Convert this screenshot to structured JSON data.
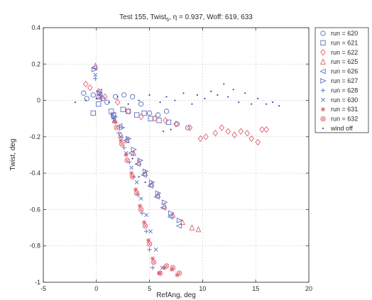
{
  "chart_data": {
    "type": "scatter",
    "title": "Test 155, Twist",
    "title_sub": "5",
    "title_rest": ", η = 0.937, Woff: 619, 633",
    "xlabel": "RefAng, deg",
    "ylabel": "Twist, deg",
    "xlim": [
      -5,
      20
    ],
    "ylim": [
      -1,
      0.4
    ],
    "xticks": [
      -5,
      0,
      5,
      10,
      15,
      20
    ],
    "yticks": [
      -1,
      -0.8,
      -0.6,
      -0.4,
      -0.2,
      0,
      0.2,
      0.4
    ],
    "xtick_labels": [
      "-5",
      "0",
      "5",
      "10",
      "15",
      "20"
    ],
    "ytick_labels": [
      "-1",
      "-0.8",
      "-0.6",
      "-0.4",
      "-0.2",
      "0",
      "0.2",
      "0.4"
    ],
    "grid": true,
    "legend_position": "top-right outside",
    "series": [
      {
        "name": "run = 620",
        "marker": "circle",
        "color": "#5b6fc0",
        "x": [
          -1.2,
          -0.9,
          -0.3,
          0.2,
          0.6,
          1.0,
          1.8,
          2.6,
          3.4,
          4.2,
          5.0,
          5.8,
          6.6,
          7.6,
          8.6
        ],
        "y": [
          0.04,
          0.01,
          0.03,
          0.02,
          0.01,
          -0.01,
          0.02,
          0.03,
          0.02,
          -0.02,
          -0.07,
          -0.08,
          -0.06,
          -0.13,
          -0.15
        ]
      },
      {
        "name": "run = 621",
        "marker": "square",
        "color": "#5b6fc0",
        "x": [
          -0.3,
          0.2,
          1.4,
          1.6,
          2.5,
          3.0,
          3.8,
          4.5,
          5.1,
          5.9,
          6.8
        ],
        "y": [
          -0.07,
          -0.02,
          -0.06,
          -0.08,
          -0.05,
          -0.06,
          -0.08,
          -0.07,
          -0.1,
          -0.11,
          -0.12
        ]
      },
      {
        "name": "run = 622",
        "marker": "diamond",
        "color": "#e0606e",
        "x": [
          -1.0,
          -0.6,
          0.2,
          0.8,
          2.0,
          3.0,
          4.2,
          5.5,
          6.5,
          7.5,
          8.8,
          9.8,
          10.3,
          11.2,
          11.8,
          12.4,
          13.0,
          13.6,
          14.2,
          14.6,
          15.2,
          15.6,
          16.0
        ],
        "y": [
          0.09,
          0.07,
          0.05,
          0.02,
          -0.01,
          -0.06,
          -0.09,
          -0.1,
          -0.11,
          -0.13,
          -0.15,
          -0.21,
          -0.2,
          -0.18,
          -0.15,
          -0.17,
          -0.19,
          -0.17,
          -0.18,
          -0.21,
          -0.23,
          -0.16,
          -0.16
        ]
      },
      {
        "name": "run = 625",
        "marker": "triangle-up",
        "color": "#e0606e",
        "x": [
          -0.1,
          0.3,
          1.7,
          2.3,
          2.9,
          3.5,
          4.0,
          4.6,
          5.2,
          5.8,
          6.4,
          7.2,
          8.1,
          9.0,
          9.6
        ],
        "y": [
          0.19,
          0.02,
          -0.11,
          -0.19,
          -0.22,
          -0.29,
          -0.34,
          -0.4,
          -0.46,
          -0.52,
          -0.58,
          -0.63,
          -0.67,
          -0.7,
          -0.71
        ]
      },
      {
        "name": "run = 626",
        "marker": "triangle-left",
        "color": "#5b6fc0",
        "x": [
          -0.2,
          0.3,
          1.6,
          2.2,
          2.8,
          3.3,
          3.9,
          4.5,
          5.1,
          5.7,
          6.3,
          7.0,
          7.8
        ],
        "y": [
          0.18,
          0.05,
          -0.08,
          -0.14,
          -0.22,
          -0.29,
          -0.35,
          -0.41,
          -0.47,
          -0.53,
          -0.59,
          -0.64,
          -0.69
        ]
      },
      {
        "name": "run = 627",
        "marker": "triangle-right",
        "color": "#5b6fc0",
        "x": [
          -0.2,
          0.3,
          1.7,
          2.4,
          3.0,
          3.5,
          4.1,
          4.6,
          5.2,
          5.8,
          6.4,
          7.0,
          7.8
        ],
        "y": [
          0.17,
          0.04,
          -0.09,
          -0.15,
          -0.21,
          -0.27,
          -0.33,
          -0.39,
          -0.45,
          -0.51,
          -0.56,
          -0.62,
          -0.66
        ]
      },
      {
        "name": "run = 628",
        "marker": "plus",
        "color": "#5b6fc0",
        "x": [
          -0.1,
          0.4,
          1.6,
          2.1,
          2.6,
          3.1,
          3.5,
          3.9,
          4.3,
          4.7,
          5.0,
          5.3
        ],
        "y": [
          0.12,
          0.03,
          -0.1,
          -0.18,
          -0.26,
          -0.34,
          -0.42,
          -0.52,
          -0.62,
          -0.72,
          -0.82,
          -0.92
        ]
      },
      {
        "name": "run = 630",
        "marker": "x",
        "color": "#5b6fc0",
        "x": [
          -0.1,
          0.4,
          1.7,
          2.3,
          2.8,
          3.3,
          3.8,
          4.2,
          4.7,
          5.1,
          5.6,
          6.2
        ],
        "y": [
          0.14,
          0.02,
          -0.11,
          -0.2,
          -0.29,
          -0.37,
          -0.45,
          -0.54,
          -0.63,
          -0.72,
          -0.82,
          -0.92
        ]
      },
      {
        "name": "run = 631",
        "marker": "star",
        "color": "#e0606e",
        "x": [
          1.8,
          2.3,
          2.8,
          3.3,
          3.7,
          4.1,
          4.5,
          4.9,
          5.3,
          5.9,
          6.4,
          7.1,
          7.6
        ],
        "y": [
          -0.12,
          -0.22,
          -0.3,
          -0.4,
          -0.49,
          -0.58,
          -0.67,
          -0.77,
          -0.87,
          -0.95,
          -0.92,
          -0.93,
          -0.96
        ]
      },
      {
        "name": "run = 632",
        "marker": "circle-x",
        "color": "#e0606e",
        "x": [
          1.9,
          2.4,
          2.9,
          3.4,
          3.8,
          4.2,
          4.6,
          5.0,
          5.4,
          6.0,
          6.6,
          7.2,
          7.8
        ],
        "y": [
          -0.15,
          -0.24,
          -0.33,
          -0.42,
          -0.51,
          -0.6,
          -0.69,
          -0.79,
          -0.89,
          -0.95,
          -0.91,
          -0.92,
          -0.95
        ]
      },
      {
        "name": "wind off",
        "marker": "dot",
        "color": "#3a4fb0",
        "x": [
          -2.0,
          -1.0,
          0.0,
          0.5,
          1.2,
          2.0,
          3.0,
          4.0,
          5.0,
          6.0,
          6.6,
          7.4,
          8.2,
          9.0,
          9.5,
          10.2,
          10.8,
          11.4,
          12.0,
          12.4,
          12.9,
          13.4,
          14.0,
          14.6,
          15.2,
          16.0,
          16.6,
          17.2,
          4.0,
          4.6,
          3.4,
          6.3,
          7.0
        ],
        "y": [
          -0.01,
          0.0,
          0.01,
          0.0,
          -0.01,
          0.02,
          -0.02,
          0.0,
          0.03,
          -0.01,
          0.02,
          0.0,
          0.04,
          -0.02,
          0.03,
          0.01,
          0.05,
          0.03,
          0.09,
          0.02,
          0.06,
          -0.01,
          0.04,
          -0.02,
          0.01,
          -0.02,
          -0.01,
          -0.03,
          -0.42,
          -0.45,
          -0.32,
          -0.17,
          -0.16
        ]
      }
    ]
  }
}
